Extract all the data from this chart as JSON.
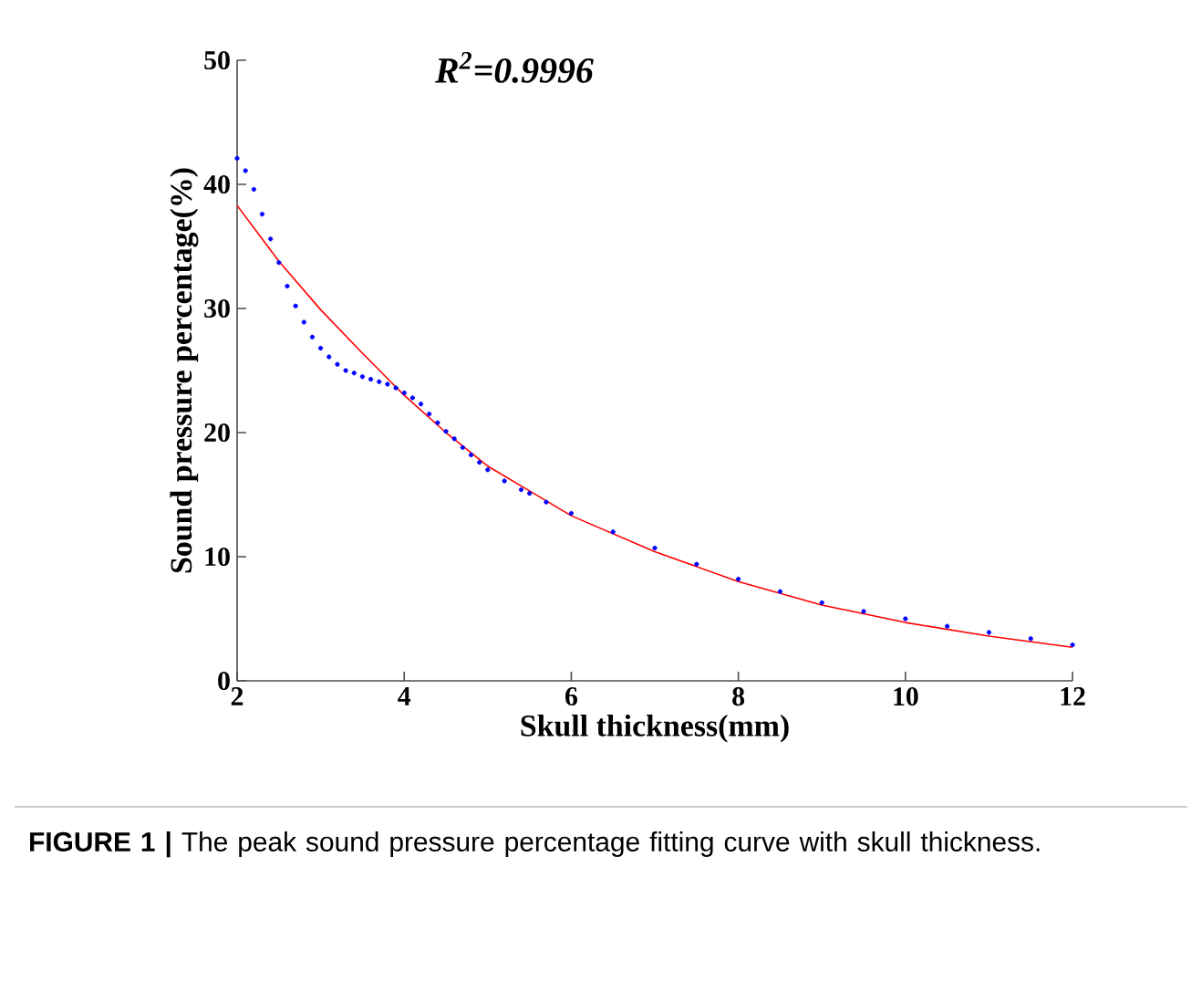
{
  "chart_data": {
    "type": "scatter",
    "xlabel": "Skull thickness(mm)",
    "ylabel": "Sound pressure percentage(%)",
    "annotations": [
      "R$^{2}$=0.9996",
      "**FIGURE 1 |** The peak sound pressure percentage fitting curve with skull thickness."
    ],
    "xlim": [
      2,
      12
    ],
    "ylim": [
      0,
      50
    ],
    "xticks": [
      2,
      4,
      6,
      8,
      10,
      12
    ],
    "yticks": [
      0,
      10,
      20,
      30,
      40,
      50
    ],
    "grid": false,
    "series": [
      {
        "marker": "circle",
        "color": "#0000ff",
        "x": [
          2.0,
          2.1,
          2.2,
          2.3,
          2.4,
          2.5,
          2.6,
          2.7,
          2.8,
          2.9,
          3.0,
          3.1,
          3.2,
          3.3,
          3.4,
          3.5,
          3.6,
          3.7,
          3.8,
          3.9,
          4.0,
          4.1,
          4.2,
          4.3,
          4.4,
          4.5,
          4.6,
          4.7,
          4.8,
          4.9,
          5.0,
          5.2,
          5.4,
          5.5,
          5.7,
          6.0,
          6.5,
          7.0,
          7.5,
          8.0,
          8.5,
          9.0,
          9.5,
          10.0,
          10.5,
          11.0,
          11.5,
          12.0
        ],
        "values": [
          42.1,
          41.1,
          39.6,
          37.6,
          35.6,
          33.7,
          31.8,
          30.2,
          28.9,
          27.7,
          26.8,
          26.1,
          25.5,
          25.0,
          24.8,
          24.5,
          24.3,
          24.1,
          23.9,
          23.6,
          23.2,
          22.8,
          22.3,
          21.5,
          20.8,
          20.1,
          19.5,
          18.8,
          18.2,
          17.6,
          17.0,
          16.1,
          15.4,
          15.1,
          14.4,
          13.5,
          12.0,
          10.7,
          9.4,
          8.2,
          7.2,
          6.3,
          5.6,
          5.0,
          4.4,
          3.9,
          3.4,
          2.9
        ]
      },
      {
        "type": "line",
        "marker": "none",
        "color": "#ff0000",
        "x": [
          2,
          2.5,
          3,
          3.5,
          4,
          4.5,
          5,
          5.5,
          6,
          7,
          8,
          9,
          10,
          11,
          12
        ],
        "values": [
          38.3,
          33.8,
          29.9,
          26.4,
          23.0,
          20.0,
          17.3,
          15.3,
          13.3,
          10.4,
          8.0,
          6.1,
          4.7,
          3.6,
          2.7
        ]
      }
    ]
  }
}
